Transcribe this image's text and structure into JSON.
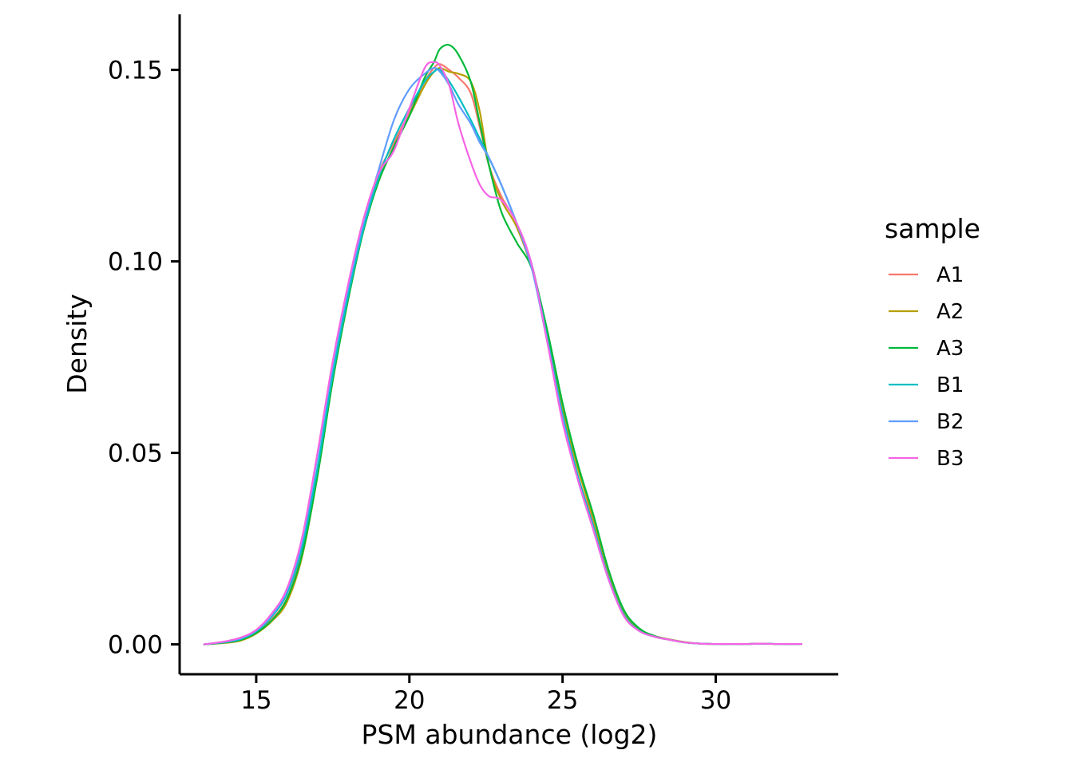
{
  "chart_data": {
    "type": "line",
    "title": "",
    "xlabel": "PSM abundance (log2)",
    "ylabel": "Density",
    "xlim": [
      12.5,
      34.0
    ],
    "ylim": [
      -0.0078,
      0.1645
    ],
    "x_ticks": [
      15,
      20,
      25,
      30
    ],
    "x_tick_labels": [
      "15",
      "20",
      "25",
      "30"
    ],
    "y_ticks": [
      0.0,
      0.05,
      0.1,
      0.15
    ],
    "y_tick_labels": [
      "0.00",
      "0.05",
      "0.10",
      "0.15"
    ],
    "grid": false,
    "legend": {
      "title": "sample",
      "position": "right"
    },
    "series": [
      {
        "name": "A1",
        "color": "#F8766D",
        "x": [
          13.3,
          14.0,
          14.5,
          15.0,
          15.5,
          16.0,
          16.5,
          17.0,
          17.5,
          18.0,
          18.5,
          19.0,
          19.5,
          20.0,
          20.5,
          20.8,
          21.0,
          21.3,
          21.6,
          22.0,
          22.3,
          22.6,
          23.0,
          23.5,
          24.0,
          24.5,
          25.0,
          25.5,
          26.0,
          26.5,
          27.0,
          27.5,
          28.0,
          28.5,
          29.0,
          29.5,
          30.0,
          30.5,
          31.0,
          31.5,
          32.0,
          32.8
        ],
        "y": [
          0.0,
          0.0005,
          0.0012,
          0.003,
          0.0065,
          0.012,
          0.024,
          0.045,
          0.07,
          0.091,
          0.109,
          0.123,
          0.131,
          0.139,
          0.147,
          0.1505,
          0.1515,
          0.15,
          0.148,
          0.144,
          0.135,
          0.125,
          0.117,
          0.11,
          0.099,
          0.081,
          0.061,
          0.044,
          0.032,
          0.018,
          0.008,
          0.004,
          0.002,
          0.0012,
          0.0005,
          0.0002,
          0.0001,
          0.0001,
          0.0001,
          0.0002,
          0.0001,
          0.0001
        ]
      },
      {
        "name": "A2",
        "color": "#B79F00",
        "x": [
          13.3,
          14.0,
          14.5,
          15.0,
          15.5,
          16.0,
          16.5,
          17.0,
          17.5,
          18.0,
          18.5,
          19.0,
          19.5,
          20.0,
          20.5,
          20.8,
          21.0,
          21.3,
          21.6,
          22.0,
          22.3,
          22.6,
          23.0,
          23.5,
          24.0,
          24.5,
          25.0,
          25.5,
          26.0,
          26.5,
          27.0,
          27.5,
          28.0,
          28.5,
          29.0,
          29.5,
          30.0,
          30.5,
          31.0,
          31.5,
          32.0,
          32.8
        ],
        "y": [
          0.0,
          0.0004,
          0.001,
          0.0028,
          0.006,
          0.011,
          0.023,
          0.044,
          0.069,
          0.09,
          0.108,
          0.121,
          0.13,
          0.138,
          0.146,
          0.1495,
          0.1505,
          0.1495,
          0.149,
          0.147,
          0.139,
          0.125,
          0.116,
          0.109,
          0.098,
          0.081,
          0.062,
          0.046,
          0.033,
          0.019,
          0.0085,
          0.004,
          0.0022,
          0.0013,
          0.0006,
          0.0002,
          0.0001,
          0.0001,
          0.0001,
          0.0002,
          0.0001,
          0.0001
        ]
      },
      {
        "name": "A3",
        "color": "#00BA38",
        "x": [
          13.3,
          14.0,
          14.5,
          15.0,
          15.5,
          16.0,
          16.5,
          17.0,
          17.5,
          18.0,
          18.5,
          19.0,
          19.5,
          20.0,
          20.5,
          20.8,
          21.0,
          21.3,
          21.6,
          22.0,
          22.3,
          22.6,
          23.0,
          23.5,
          24.0,
          24.5,
          25.0,
          25.5,
          26.0,
          26.5,
          27.0,
          27.5,
          28.0,
          28.5,
          29.0,
          29.5,
          30.0,
          30.5,
          31.0,
          31.5,
          32.0,
          32.8
        ],
        "y": [
          0.0,
          0.0005,
          0.0012,
          0.003,
          0.0062,
          0.0118,
          0.0235,
          0.044,
          0.069,
          0.09,
          0.108,
          0.121,
          0.13,
          0.138,
          0.148,
          0.152,
          0.1555,
          0.1565,
          0.154,
          0.147,
          0.136,
          0.125,
          0.113,
          0.105,
          0.098,
          0.082,
          0.063,
          0.047,
          0.034,
          0.0195,
          0.009,
          0.0042,
          0.0022,
          0.0012,
          0.0005,
          0.0002,
          0.0001,
          0.0001,
          0.0001,
          0.0002,
          0.0001,
          0.0001
        ]
      },
      {
        "name": "B1",
        "color": "#00BFC4",
        "x": [
          13.3,
          14.0,
          14.5,
          15.0,
          15.5,
          16.0,
          16.5,
          17.0,
          17.5,
          18.0,
          18.5,
          19.0,
          19.5,
          20.0,
          20.5,
          20.8,
          21.0,
          21.3,
          21.6,
          22.0,
          22.3,
          22.6,
          23.0,
          23.5,
          24.0,
          24.5,
          25.0,
          25.5,
          26.0,
          26.5,
          27.0,
          27.5,
          28.0,
          28.5,
          29.0,
          29.5,
          30.0,
          30.5,
          31.0,
          31.5,
          32.0,
          32.8
        ],
        "y": [
          0.0,
          0.0006,
          0.0014,
          0.0034,
          0.0072,
          0.0132,
          0.0255,
          0.046,
          0.0705,
          0.091,
          0.1085,
          0.122,
          0.132,
          0.14,
          0.147,
          0.1495,
          0.15,
          0.147,
          0.143,
          0.137,
          0.132,
          0.127,
          0.12,
          0.11,
          0.099,
          0.08,
          0.06,
          0.044,
          0.031,
          0.0175,
          0.0078,
          0.0036,
          0.002,
          0.0012,
          0.0005,
          0.0002,
          0.0001,
          0.0001,
          0.0001,
          0.0002,
          0.0001,
          0.0001
        ]
      },
      {
        "name": "B2",
        "color": "#619CFF",
        "x": [
          13.3,
          14.0,
          14.5,
          15.0,
          15.5,
          16.0,
          16.5,
          17.0,
          17.5,
          18.0,
          18.5,
          19.0,
          19.5,
          20.0,
          20.5,
          20.8,
          21.0,
          21.3,
          21.6,
          22.0,
          22.3,
          22.6,
          23.0,
          23.5,
          24.0,
          24.5,
          25.0,
          25.5,
          26.0,
          26.5,
          27.0,
          27.5,
          28.0,
          28.5,
          29.0,
          29.5,
          30.0,
          30.5,
          31.0,
          31.5,
          32.0,
          32.8
        ],
        "y": [
          0.0,
          0.0007,
          0.0016,
          0.0036,
          0.0076,
          0.014,
          0.027,
          0.049,
          0.073,
          0.093,
          0.11,
          0.124,
          0.137,
          0.145,
          0.149,
          0.1505,
          0.1495,
          0.146,
          0.141,
          0.136,
          0.131,
          0.127,
          0.12,
          0.11,
          0.098,
          0.079,
          0.059,
          0.043,
          0.03,
          0.017,
          0.0075,
          0.0035,
          0.002,
          0.0012,
          0.0005,
          0.0002,
          0.0001,
          0.0001,
          0.0001,
          0.0002,
          0.0001,
          0.0001
        ]
      },
      {
        "name": "B3",
        "color": "#F564E3",
        "x": [
          13.3,
          14.0,
          14.5,
          15.0,
          15.5,
          16.0,
          16.5,
          17.0,
          17.5,
          18.0,
          18.5,
          19.0,
          19.5,
          20.0,
          20.5,
          20.8,
          21.0,
          21.3,
          21.6,
          22.0,
          22.3,
          22.6,
          23.0,
          23.5,
          24.0,
          24.5,
          25.0,
          25.5,
          26.0,
          26.5,
          27.0,
          27.5,
          28.0,
          28.5,
          29.0,
          29.5,
          30.0,
          30.5,
          31.0,
          31.5,
          32.0,
          32.8
        ],
        "y": [
          0.0,
          0.0008,
          0.0018,
          0.0038,
          0.008,
          0.0145,
          0.028,
          0.05,
          0.074,
          0.094,
          0.111,
          0.123,
          0.129,
          0.14,
          0.1505,
          0.152,
          0.151,
          0.146,
          0.136,
          0.126,
          0.12,
          0.117,
          0.116,
          0.11,
          0.099,
          0.079,
          0.058,
          0.043,
          0.03,
          0.017,
          0.0074,
          0.0035,
          0.002,
          0.0012,
          0.0005,
          0.0002,
          0.0001,
          0.0001,
          0.0001,
          0.0002,
          0.0001,
          0.0001
        ]
      }
    ]
  }
}
